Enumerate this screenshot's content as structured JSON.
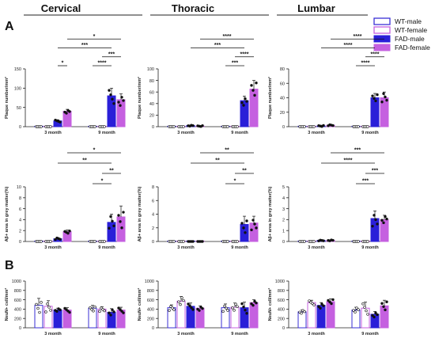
{
  "figure": {
    "panel_labels": [
      "A",
      "B"
    ],
    "column_titles": [
      "Cervical",
      "Thoracic",
      "Lumbar"
    ],
    "legend": [
      {
        "name": "WT-male",
        "color": "#3a2fd6",
        "fill": "open"
      },
      {
        "name": "WT-female",
        "color": "#c560e0",
        "fill": "open"
      },
      {
        "name": "FAD-male",
        "color": "#2a1fd8",
        "fill": "solid"
      },
      {
        "name": "FAD-female",
        "color": "#c560e0",
        "fill": "solid"
      }
    ]
  },
  "chart_data": [
    {
      "id": "plaque-cervical",
      "row": "plaque",
      "column": "Cervical",
      "type": "bar",
      "ylabel": "Plaque number/mm²",
      "ylim": [
        0,
        150
      ],
      "yticks": [
        "0",
        "50",
        "100",
        "150"
      ],
      "categories": [
        "3 month",
        "9 month"
      ],
      "series": [
        {
          "name": "WT-male",
          "values": [
            0,
            0
          ]
        },
        {
          "name": "WT-female",
          "values": [
            0,
            0
          ]
        },
        {
          "name": "FAD-male",
          "values": [
            15,
            80
          ]
        },
        {
          "name": "FAD-female",
          "values": [
            40,
            70
          ]
        }
      ],
      "errors": [
        [
          0,
          0
        ],
        [
          0,
          0
        ],
        [
          3,
          20
        ],
        [
          5,
          15
        ]
      ],
      "sig": [
        {
          "label": "*",
          "from": [
            0,
            3
          ],
          "to": [
            1,
            3
          ],
          "level": 3
        },
        {
          "label": "***",
          "from": [
            0,
            2
          ],
          "to": [
            1,
            2
          ],
          "level": 2
        },
        {
          "label": "*",
          "from": [
            0,
            2
          ],
          "to": [
            0,
            3
          ],
          "level": 0
        },
        {
          "label": "****",
          "from": [
            1,
            0
          ],
          "to": [
            1,
            2
          ],
          "level": 0
        },
        {
          "label": "***",
          "from": [
            1,
            1
          ],
          "to": [
            1,
            3
          ],
          "level": 1
        }
      ]
    },
    {
      "id": "plaque-thoracic",
      "row": "plaque",
      "column": "Thoracic",
      "type": "bar",
      "ylabel": "Plaque number/mm²",
      "ylim": [
        0,
        100
      ],
      "yticks": [
        "0",
        "20",
        "40",
        "60",
        "80",
        "100"
      ],
      "categories": [
        "3 month",
        "9 month"
      ],
      "series": [
        {
          "name": "WT-male",
          "values": [
            0,
            0
          ]
        },
        {
          "name": "WT-female",
          "values": [
            0,
            0
          ]
        },
        {
          "name": "FAD-male",
          "values": [
            2,
            45
          ]
        },
        {
          "name": "FAD-female",
          "values": [
            1,
            65
          ]
        }
      ],
      "errors": [
        [
          0,
          0
        ],
        [
          0,
          0
        ],
        [
          1,
          8
        ],
        [
          1,
          15
        ]
      ],
      "sig": [
        {
          "label": "****",
          "from": [
            0,
            3
          ],
          "to": [
            1,
            3
          ],
          "level": 3
        },
        {
          "label": "***",
          "from": [
            0,
            2
          ],
          "to": [
            1,
            2
          ],
          "level": 2
        },
        {
          "label": "****",
          "from": [
            1,
            1
          ],
          "to": [
            1,
            3
          ],
          "level": 1
        },
        {
          "label": "***",
          "from": [
            1,
            0
          ],
          "to": [
            1,
            2
          ],
          "level": 0
        }
      ]
    },
    {
      "id": "plaque-lumbar",
      "row": "plaque",
      "column": "Lumbar",
      "type": "bar",
      "ylabel": "Plaque number/mm²",
      "ylim": [
        0,
        80
      ],
      "yticks": [
        "0",
        "20",
        "40",
        "60",
        "80"
      ],
      "categories": [
        "3 month",
        "9 month"
      ],
      "series": [
        {
          "name": "WT-male",
          "values": [
            0,
            0
          ]
        },
        {
          "name": "WT-female",
          "values": [
            0,
            0
          ]
        },
        {
          "name": "FAD-male",
          "values": [
            1,
            40
          ]
        },
        {
          "name": "FAD-female",
          "values": [
            2,
            40
          ]
        }
      ],
      "errors": [
        [
          0,
          0
        ],
        [
          0,
          0
        ],
        [
          1,
          6
        ],
        [
          1,
          8
        ]
      ],
      "sig": [
        {
          "label": "****",
          "from": [
            0,
            3
          ],
          "to": [
            1,
            3
          ],
          "level": 3
        },
        {
          "label": "****",
          "from": [
            0,
            2
          ],
          "to": [
            1,
            2
          ],
          "level": 2
        },
        {
          "label": "****",
          "from": [
            1,
            1
          ],
          "to": [
            1,
            3
          ],
          "level": 1
        },
        {
          "label": "****",
          "from": [
            1,
            0
          ],
          "to": [
            1,
            2
          ],
          "level": 0
        }
      ]
    },
    {
      "id": "abeta-cervical",
      "row": "abeta",
      "column": "Cervical",
      "type": "bar",
      "ylabel": "Aβ+ area in grey matter(%)",
      "ylim": [
        0,
        10
      ],
      "yticks": [
        "0",
        "2",
        "4",
        "6",
        "8",
        "10"
      ],
      "categories": [
        "3 month",
        "9 month"
      ],
      "series": [
        {
          "name": "WT-male",
          "values": [
            0,
            0
          ]
        },
        {
          "name": "WT-female",
          "values": [
            0,
            0
          ]
        },
        {
          "name": "FAD-male",
          "values": [
            0.5,
            3.5
          ]
        },
        {
          "name": "FAD-female",
          "values": [
            1.8,
            4.5
          ]
        }
      ],
      "errors": [
        [
          0,
          0
        ],
        [
          0,
          0
        ],
        [
          0.2,
          1.5
        ],
        [
          0.3,
          2
        ]
      ],
      "sig": [
        {
          "label": "*",
          "from": [
            0,
            3
          ],
          "to": [
            1,
            3
          ],
          "level": 3
        },
        {
          "label": "**",
          "from": [
            0,
            2
          ],
          "to": [
            1,
            2
          ],
          "level": 2
        },
        {
          "label": "**",
          "from": [
            1,
            1
          ],
          "to": [
            1,
            3
          ],
          "level": 1
        },
        {
          "label": "*",
          "from": [
            1,
            0
          ],
          "to": [
            1,
            2
          ],
          "level": 0
        }
      ]
    },
    {
      "id": "abeta-thoracic",
      "row": "abeta",
      "column": "Thoracic",
      "type": "bar",
      "ylabel": "Aβ+ area in grey matter(%)",
      "ylim": [
        0,
        8
      ],
      "yticks": [
        "0",
        "2",
        "4",
        "6",
        "8"
      ],
      "categories": [
        "3 month",
        "9 month"
      ],
      "series": [
        {
          "name": "WT-male",
          "values": [
            0,
            0
          ]
        },
        {
          "name": "WT-female",
          "values": [
            0,
            0
          ]
        },
        {
          "name": "FAD-male",
          "values": [
            0,
            2.5
          ]
        },
        {
          "name": "FAD-female",
          "values": [
            0,
            2.7
          ]
        }
      ],
      "errors": [
        [
          0,
          0
        ],
        [
          0,
          0
        ],
        [
          0,
          1.2
        ],
        [
          0,
          1
        ]
      ],
      "sig": [
        {
          "label": "**",
          "from": [
            0,
            3
          ],
          "to": [
            1,
            3
          ],
          "level": 3
        },
        {
          "label": "**",
          "from": [
            0,
            2
          ],
          "to": [
            1,
            2
          ],
          "level": 2
        },
        {
          "label": "**",
          "from": [
            1,
            1
          ],
          "to": [
            1,
            3
          ],
          "level": 1
        },
        {
          "label": "*",
          "from": [
            1,
            0
          ],
          "to": [
            1,
            2
          ],
          "level": 0
        }
      ]
    },
    {
      "id": "abeta-lumbar",
      "row": "abeta",
      "column": "Lumbar",
      "type": "bar",
      "ylabel": "Aβ+ area in grey matter(%)",
      "ylim": [
        0,
        5
      ],
      "yticks": [
        "0",
        "1",
        "2",
        "3",
        "4",
        "5"
      ],
      "categories": [
        "3 month",
        "9 month"
      ],
      "series": [
        {
          "name": "WT-male",
          "values": [
            0,
            0
          ]
        },
        {
          "name": "WT-female",
          "values": [
            0,
            0
          ]
        },
        {
          "name": "FAD-male",
          "values": [
            0.1,
            2.1
          ]
        },
        {
          "name": "FAD-female",
          "values": [
            0.1,
            2.0
          ]
        }
      ],
      "errors": [
        [
          0,
          0
        ],
        [
          0,
          0
        ],
        [
          0.05,
          0.7
        ],
        [
          0.05,
          0.4
        ]
      ],
      "sig": [
        {
          "label": "***",
          "from": [
            0,
            3
          ],
          "to": [
            1,
            3
          ],
          "level": 3
        },
        {
          "label": "****",
          "from": [
            0,
            2
          ],
          "to": [
            1,
            2
          ],
          "level": 2
        },
        {
          "label": "***",
          "from": [
            1,
            1
          ],
          "to": [
            1,
            3
          ],
          "level": 1
        },
        {
          "label": "***",
          "from": [
            1,
            0
          ],
          "to": [
            1,
            2
          ],
          "level": 0
        }
      ]
    },
    {
      "id": "neun-cervical",
      "row": "neun",
      "column": "Cervical",
      "type": "bar",
      "ylabel": "NeuN+ cell/mm²",
      "ylim": [
        0,
        1000
      ],
      "yticks": [
        "0",
        "200",
        "400",
        "600",
        "800",
        "1000"
      ],
      "categories": [
        "3 month",
        "9 month"
      ],
      "series": [
        {
          "name": "WT-male",
          "values": [
            480,
            420
          ]
        },
        {
          "name": "WT-female",
          "values": [
            460,
            400
          ]
        },
        {
          "name": "FAD-male",
          "values": [
            380,
            330
          ]
        },
        {
          "name": "FAD-female",
          "values": [
            380,
            380
          ]
        }
      ],
      "errors": [
        [
          150,
          60
        ],
        [
          120,
          50
        ],
        [
          40,
          80
        ],
        [
          50,
          60
        ]
      ],
      "sig": []
    },
    {
      "id": "neun-thoracic",
      "row": "neun",
      "column": "Thoracic",
      "type": "bar",
      "ylabel": "NeuN+ cell/mm²",
      "ylim": [
        0,
        1000
      ],
      "yticks": [
        "0",
        "200",
        "400",
        "600",
        "800",
        "1000"
      ],
      "categories": [
        "3 month",
        "9 month"
      ],
      "series": [
        {
          "name": "WT-male",
          "values": [
            430,
            430
          ]
        },
        {
          "name": "WT-female",
          "values": [
            570,
            440
          ]
        },
        {
          "name": "FAD-male",
          "values": [
            460,
            430
          ]
        },
        {
          "name": "FAD-female",
          "values": [
            420,
            540
          ]
        }
      ],
      "errors": [
        [
          60,
          80
        ],
        [
          100,
          90
        ],
        [
          70,
          120
        ],
        [
          50,
          60
        ]
      ],
      "sig": []
    },
    {
      "id": "neun-lumbar",
      "row": "neun",
      "column": "Lumbar",
      "type": "bar",
      "ylabel": "NeuN+ cell/mm²",
      "ylim": [
        0,
        1000
      ],
      "yticks": [
        "0",
        "200",
        "400",
        "600",
        "800",
        "1000"
      ],
      "categories": [
        "3 month",
        "9 month"
      ],
      "series": [
        {
          "name": "WT-male",
          "values": [
            340,
            380
          ]
        },
        {
          "name": "WT-female",
          "values": [
            540,
            420
          ]
        },
        {
          "name": "FAD-male",
          "values": [
            480,
            290
          ]
        },
        {
          "name": "FAD-female",
          "values": [
            560,
            470
          ]
        }
      ],
      "errors": [
        [
          40,
          60
        ],
        [
          50,
          130
        ],
        [
          60,
          60
        ],
        [
          60,
          120
        ]
      ],
      "sig": []
    }
  ]
}
